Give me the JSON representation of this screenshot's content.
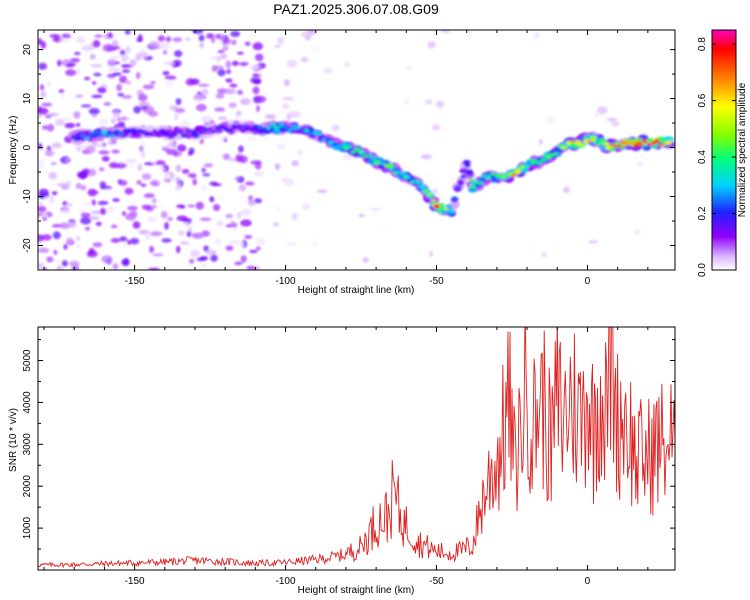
{
  "chart_data": [
    {
      "type": "heatmap",
      "title": "PAZ1.2025.306.07.08.G09",
      "xlabel": "Height of straight line (km)",
      "ylabel": "Frequency (Hz)",
      "xlim": [
        -182,
        29
      ],
      "ylim": [
        -25,
        24
      ],
      "xticks": [
        -150,
        -100,
        -50,
        0
      ],
      "xtick_labels": [
        "-150",
        "-100",
        "-50",
        "0"
      ],
      "yticks": [
        -20,
        -10,
        0,
        10,
        20
      ],
      "ytick_labels": [
        "-20",
        "-10",
        "0",
        "10",
        "20"
      ],
      "colorbar": {
        "label": "Normalized spectral amplitude",
        "range": [
          0.0,
          0.85
        ],
        "ticks": [
          0.0,
          0.2,
          0.4,
          0.6,
          0.8
        ],
        "tick_labels": [
          "0.0",
          "0.2",
          "0.4",
          "0.6",
          "0.8"
        ],
        "colors": [
          "#ffffff",
          "#d8b0ff",
          "#9000ff",
          "#2020ff",
          "#00d0ff",
          "#00ff80",
          "#80ff00",
          "#ffff00",
          "#ff8000",
          "#ff0000",
          "#ff00c0"
        ]
      },
      "ridge": [
        {
          "x": -170,
          "y": 2,
          "a": 0.22
        },
        {
          "x": -160,
          "y": 3,
          "a": 0.3
        },
        {
          "x": -150,
          "y": 3,
          "a": 0.18
        },
        {
          "x": -140,
          "y": 3,
          "a": 0.16
        },
        {
          "x": -130,
          "y": 3,
          "a": 0.18
        },
        {
          "x": -120,
          "y": 4,
          "a": 0.16
        },
        {
          "x": -110,
          "y": 4,
          "a": 0.2
        },
        {
          "x": -103,
          "y": 4,
          "a": 0.33
        },
        {
          "x": -97,
          "y": 4,
          "a": 0.28
        },
        {
          "x": -90,
          "y": 3,
          "a": 0.3
        },
        {
          "x": -85,
          "y": 1,
          "a": 0.3
        },
        {
          "x": -80,
          "y": 0,
          "a": 0.4
        },
        {
          "x": -75,
          "y": -1,
          "a": 0.38
        },
        {
          "x": -70,
          "y": -3,
          "a": 0.42
        },
        {
          "x": -65,
          "y": -4,
          "a": 0.4
        },
        {
          "x": -60,
          "y": -6,
          "a": 0.37
        },
        {
          "x": -55,
          "y": -8,
          "a": 0.3
        },
        {
          "x": -50,
          "y": -12,
          "a": 0.75
        },
        {
          "x": -45,
          "y": -13,
          "a": 0.3
        },
        {
          "x": -40,
          "y": -3,
          "a": 0.2
        },
        {
          "x": -38,
          "y": -8,
          "a": 0.4
        },
        {
          "x": -33,
          "y": -6,
          "a": 0.35
        },
        {
          "x": -28,
          "y": -6,
          "a": 0.45
        },
        {
          "x": -23,
          "y": -5,
          "a": 0.6
        },
        {
          "x": -18,
          "y": -3,
          "a": 0.38
        },
        {
          "x": -13,
          "y": -2,
          "a": 0.42
        },
        {
          "x": -8,
          "y": 0,
          "a": 0.5
        },
        {
          "x": -3,
          "y": 1,
          "a": 0.6
        },
        {
          "x": 2,
          "y": 2,
          "a": 0.5
        },
        {
          "x": 7,
          "y": 0,
          "a": 0.55
        },
        {
          "x": 12,
          "y": 1,
          "a": 0.68
        },
        {
          "x": 17,
          "y": 1,
          "a": 0.7
        },
        {
          "x": 22,
          "y": 1,
          "a": 0.72
        },
        {
          "x": 27,
          "y": 1,
          "a": 0.6
        }
      ]
    },
    {
      "type": "line",
      "xlabel": "Height of straight line (km)",
      "ylabel": "SNR (10 * v/v)",
      "xlim": [
        -182,
        29
      ],
      "ylim": [
        0,
        5800
      ],
      "xticks": [
        -150,
        -100,
        -50,
        0
      ],
      "xtick_labels": [
        "-150",
        "-100",
        "-50",
        "0"
      ],
      "yticks": [
        1000,
        2000,
        3000,
        4000,
        5000
      ],
      "ytick_labels": [
        "1000",
        "2000",
        "3000",
        "4000",
        "5000"
      ],
      "line_color": "#e02020",
      "x": [
        -182,
        -170,
        -160,
        -150,
        -140,
        -130,
        -120,
        -110,
        -100,
        -90,
        -85,
        -80,
        -75,
        -72,
        -70,
        -66,
        -64,
        -62,
        -60,
        -58,
        -56,
        -54,
        -52,
        -50,
        -46,
        -42,
        -38,
        -35,
        -32,
        -30,
        -28,
        -26,
        -24,
        -22,
        -20,
        -18,
        -16,
        -14,
        -12,
        -10,
        -8,
        -6,
        -4,
        -2,
        0,
        2,
        4,
        6,
        8,
        10,
        12,
        14,
        16,
        18,
        20,
        24,
        29
      ],
      "values": [
        120,
        130,
        150,
        170,
        190,
        230,
        200,
        160,
        180,
        250,
        300,
        380,
        550,
        900,
        1150,
        1300,
        1900,
        1250,
        1050,
        900,
        650,
        600,
        500,
        450,
        400,
        450,
        600,
        1600,
        2300,
        2600,
        3200,
        4000,
        2400,
        3500,
        4600,
        3300,
        4200,
        3800,
        2800,
        4200,
        3500,
        4100,
        3900,
        3500,
        4400,
        3300,
        4400,
        3700,
        5300,
        3500,
        3800,
        3300,
        2600,
        2700,
        2700,
        3000,
        3100
      ]
    }
  ]
}
